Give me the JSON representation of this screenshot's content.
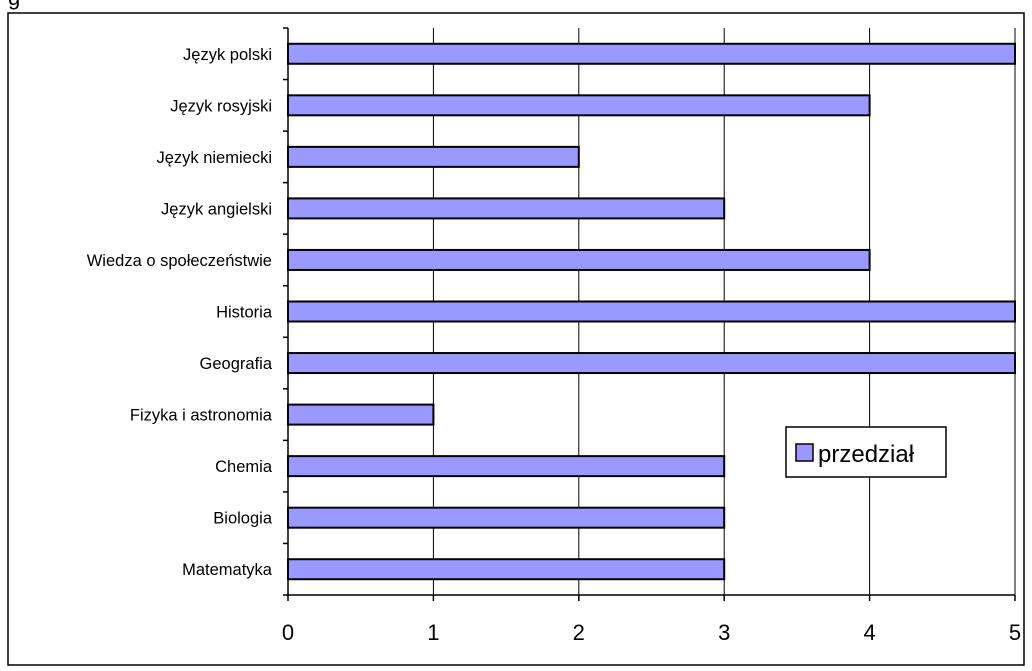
{
  "top_fragment": "g",
  "chart_data": {
    "type": "bar",
    "orientation": "horizontal",
    "categories": [
      "Język polski",
      "Język rosyjski",
      "Język niemiecki",
      "Język angielski",
      "Wiedza o społeczeństwie",
      "Historia",
      "Geografia",
      "Fizyka i astronomia",
      "Chemia",
      "Biologia",
      "Matematyka"
    ],
    "series": [
      {
        "name": "przedział",
        "values": [
          5,
          4,
          2,
          3,
          4,
          5,
          5,
          1,
          3,
          3,
          3
        ],
        "color": "#9999ff"
      }
    ],
    "xticks": [
      "0",
      "1",
      "2",
      "3",
      "4",
      "5"
    ],
    "xlim": [
      0,
      5
    ],
    "grid": "vertical",
    "legend_position": "right"
  }
}
